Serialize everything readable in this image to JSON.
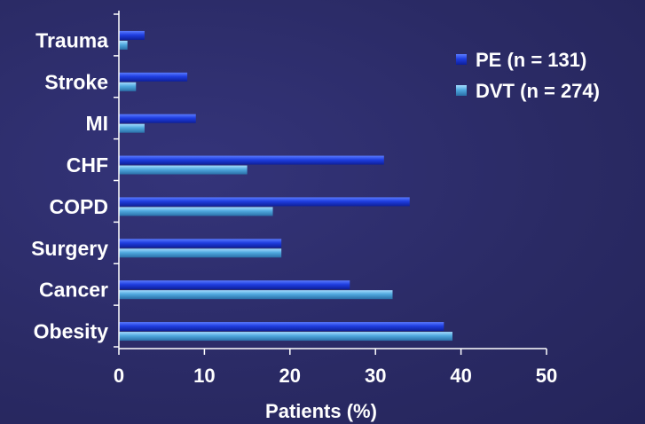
{
  "chart_data": {
    "type": "bar",
    "orientation": "horizontal",
    "categories": [
      "Trauma",
      "Stroke",
      "MI",
      "CHF",
      "COPD",
      "Surgery",
      "Cancer",
      "Obesity"
    ],
    "series": [
      {
        "name": "PE (n = 131)",
        "values": [
          3,
          8,
          9,
          31,
          34,
          19,
          27,
          38
        ],
        "color": "#1f3ee0"
      },
      {
        "name": "DVT (n = 274)",
        "values": [
          1,
          2,
          3,
          15,
          18,
          19,
          32,
          39
        ],
        "color": "#4fa8de"
      }
    ],
    "xlabel": "Patients (%)",
    "xlim": [
      0,
      50
    ],
    "xticks": [
      0,
      10,
      20,
      30,
      40,
      50
    ],
    "grid": false,
    "legend_position": "top-right"
  },
  "colors": {
    "background": "#2c2c66",
    "axis": "#ffffff",
    "text": "#ffffff"
  }
}
